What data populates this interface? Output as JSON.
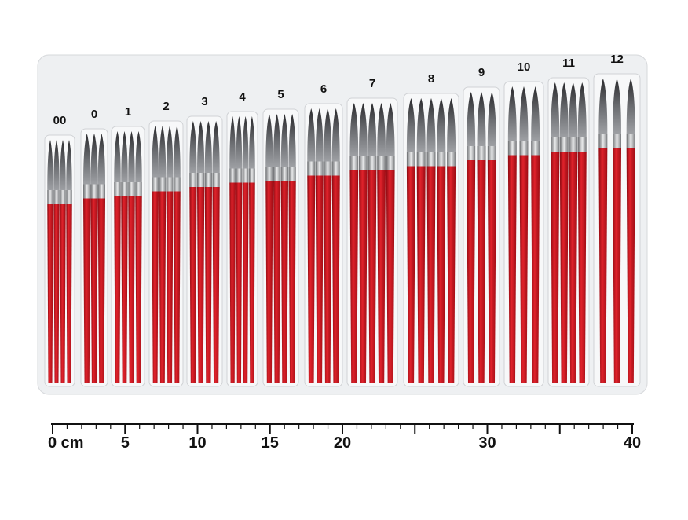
{
  "brush_sizes": [
    "00",
    "0",
    "1",
    "2",
    "3",
    "4",
    "5",
    "6",
    "7",
    "8",
    "9",
    "10",
    "11",
    "12"
  ],
  "ruler": {
    "range": [
      0,
      40
    ],
    "ticks": [
      {
        "value": 0,
        "label": "0 cm"
      },
      5,
      10,
      15,
      20,
      30,
      40
    ]
  }
}
